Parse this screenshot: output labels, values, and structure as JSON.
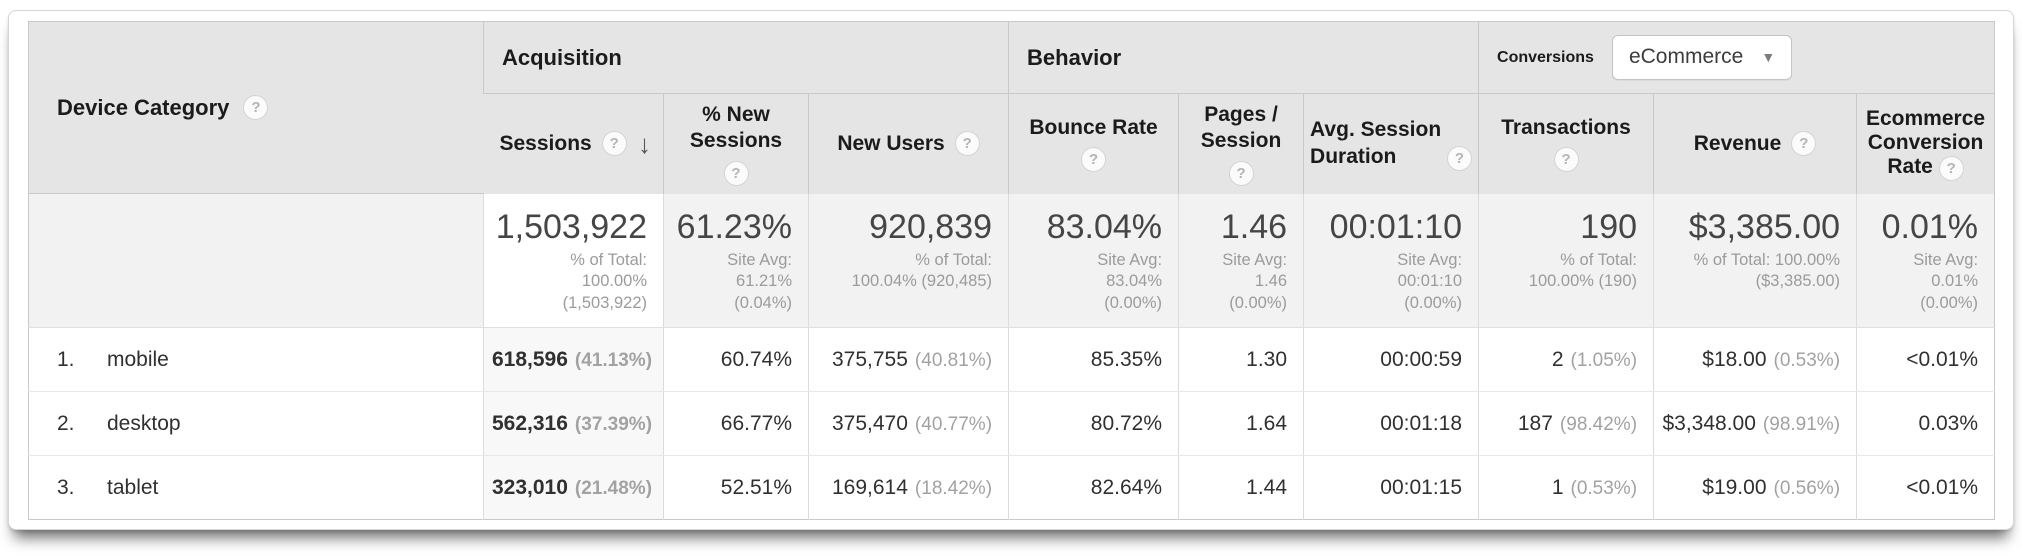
{
  "icons": {
    "help": "?",
    "sort_desc": "↓",
    "caret": "▼"
  },
  "table": {
    "dimension_header": "Device Category",
    "sections": {
      "acquisition": "Acquisition",
      "behavior": "Behavior",
      "conversions": "Conversions",
      "conversions_dropdown": "eCommerce"
    },
    "columns": {
      "sessions": "Sessions",
      "pct_new_sessions": "% New\nSessions",
      "new_users": "New Users",
      "bounce_rate": "Bounce Rate",
      "pages_session": "Pages /\nSession",
      "avg_duration": "Avg. Session\nDuration",
      "transactions": "Transactions",
      "revenue": "Revenue",
      "ecommerce_conversion_rate": "Ecommerce\nConversion\nRate"
    },
    "totals": {
      "sessions": {
        "value": "1,503,922",
        "sub": "% of Total:\n100.00%\n(1,503,922)"
      },
      "new_sessions": {
        "value": "61.23%",
        "sub": "Site Avg:\n61.21%\n(0.04%)"
      },
      "new_users": {
        "value": "920,839",
        "sub": "% of Total:\n100.04% (920,485)"
      },
      "bounce_rate": {
        "value": "83.04%",
        "sub": "Site Avg:\n83.04%\n(0.00%)"
      },
      "pages_session": {
        "value": "1.46",
        "sub": "Site Avg:\n1.46\n(0.00%)"
      },
      "avg_duration": {
        "value": "00:01:10",
        "sub": "Site Avg:\n00:01:10\n(0.00%)"
      },
      "transactions": {
        "value": "190",
        "sub": "% of Total:\n100.00% (190)"
      },
      "revenue": {
        "value": "$3,385.00",
        "sub": "% of Total: 100.00%\n($3,385.00)"
      },
      "ecr": {
        "value": "0.01%",
        "sub": "Site Avg:\n0.01%\n(0.00%)"
      }
    },
    "rows": [
      {
        "index": "1.",
        "name": "mobile",
        "sessions": "618,596",
        "sessions_pct": "(41.13%)",
        "new_sessions": "60.74%",
        "new_users": "375,755",
        "new_users_pct": "(40.81%)",
        "bounce_rate": "85.35%",
        "pages_session": "1.30",
        "avg_duration": "00:00:59",
        "transactions": "2",
        "transactions_pct": "(1.05%)",
        "revenue": "$18.00",
        "revenue_pct": "(0.53%)",
        "ecr": "<0.01%"
      },
      {
        "index": "2.",
        "name": "desktop",
        "sessions": "562,316",
        "sessions_pct": "(37.39%)",
        "new_sessions": "66.77%",
        "new_users": "375,470",
        "new_users_pct": "(40.77%)",
        "bounce_rate": "80.72%",
        "pages_session": "1.64",
        "avg_duration": "00:01:18",
        "transactions": "187",
        "transactions_pct": "(98.42%)",
        "revenue": "$3,348.00",
        "revenue_pct": "(98.91%)",
        "ecr": "0.03%"
      },
      {
        "index": "3.",
        "name": "tablet",
        "sessions": "323,010",
        "sessions_pct": "(21.48%)",
        "new_sessions": "52.51%",
        "new_users": "169,614",
        "new_users_pct": "(18.42%)",
        "bounce_rate": "82.64%",
        "pages_session": "1.44",
        "avg_duration": "00:01:15",
        "transactions": "1",
        "transactions_pct": "(0.53%)",
        "revenue": "$19.00",
        "revenue_pct": "(0.56%)",
        "ecr": "<0.01%"
      }
    ]
  }
}
